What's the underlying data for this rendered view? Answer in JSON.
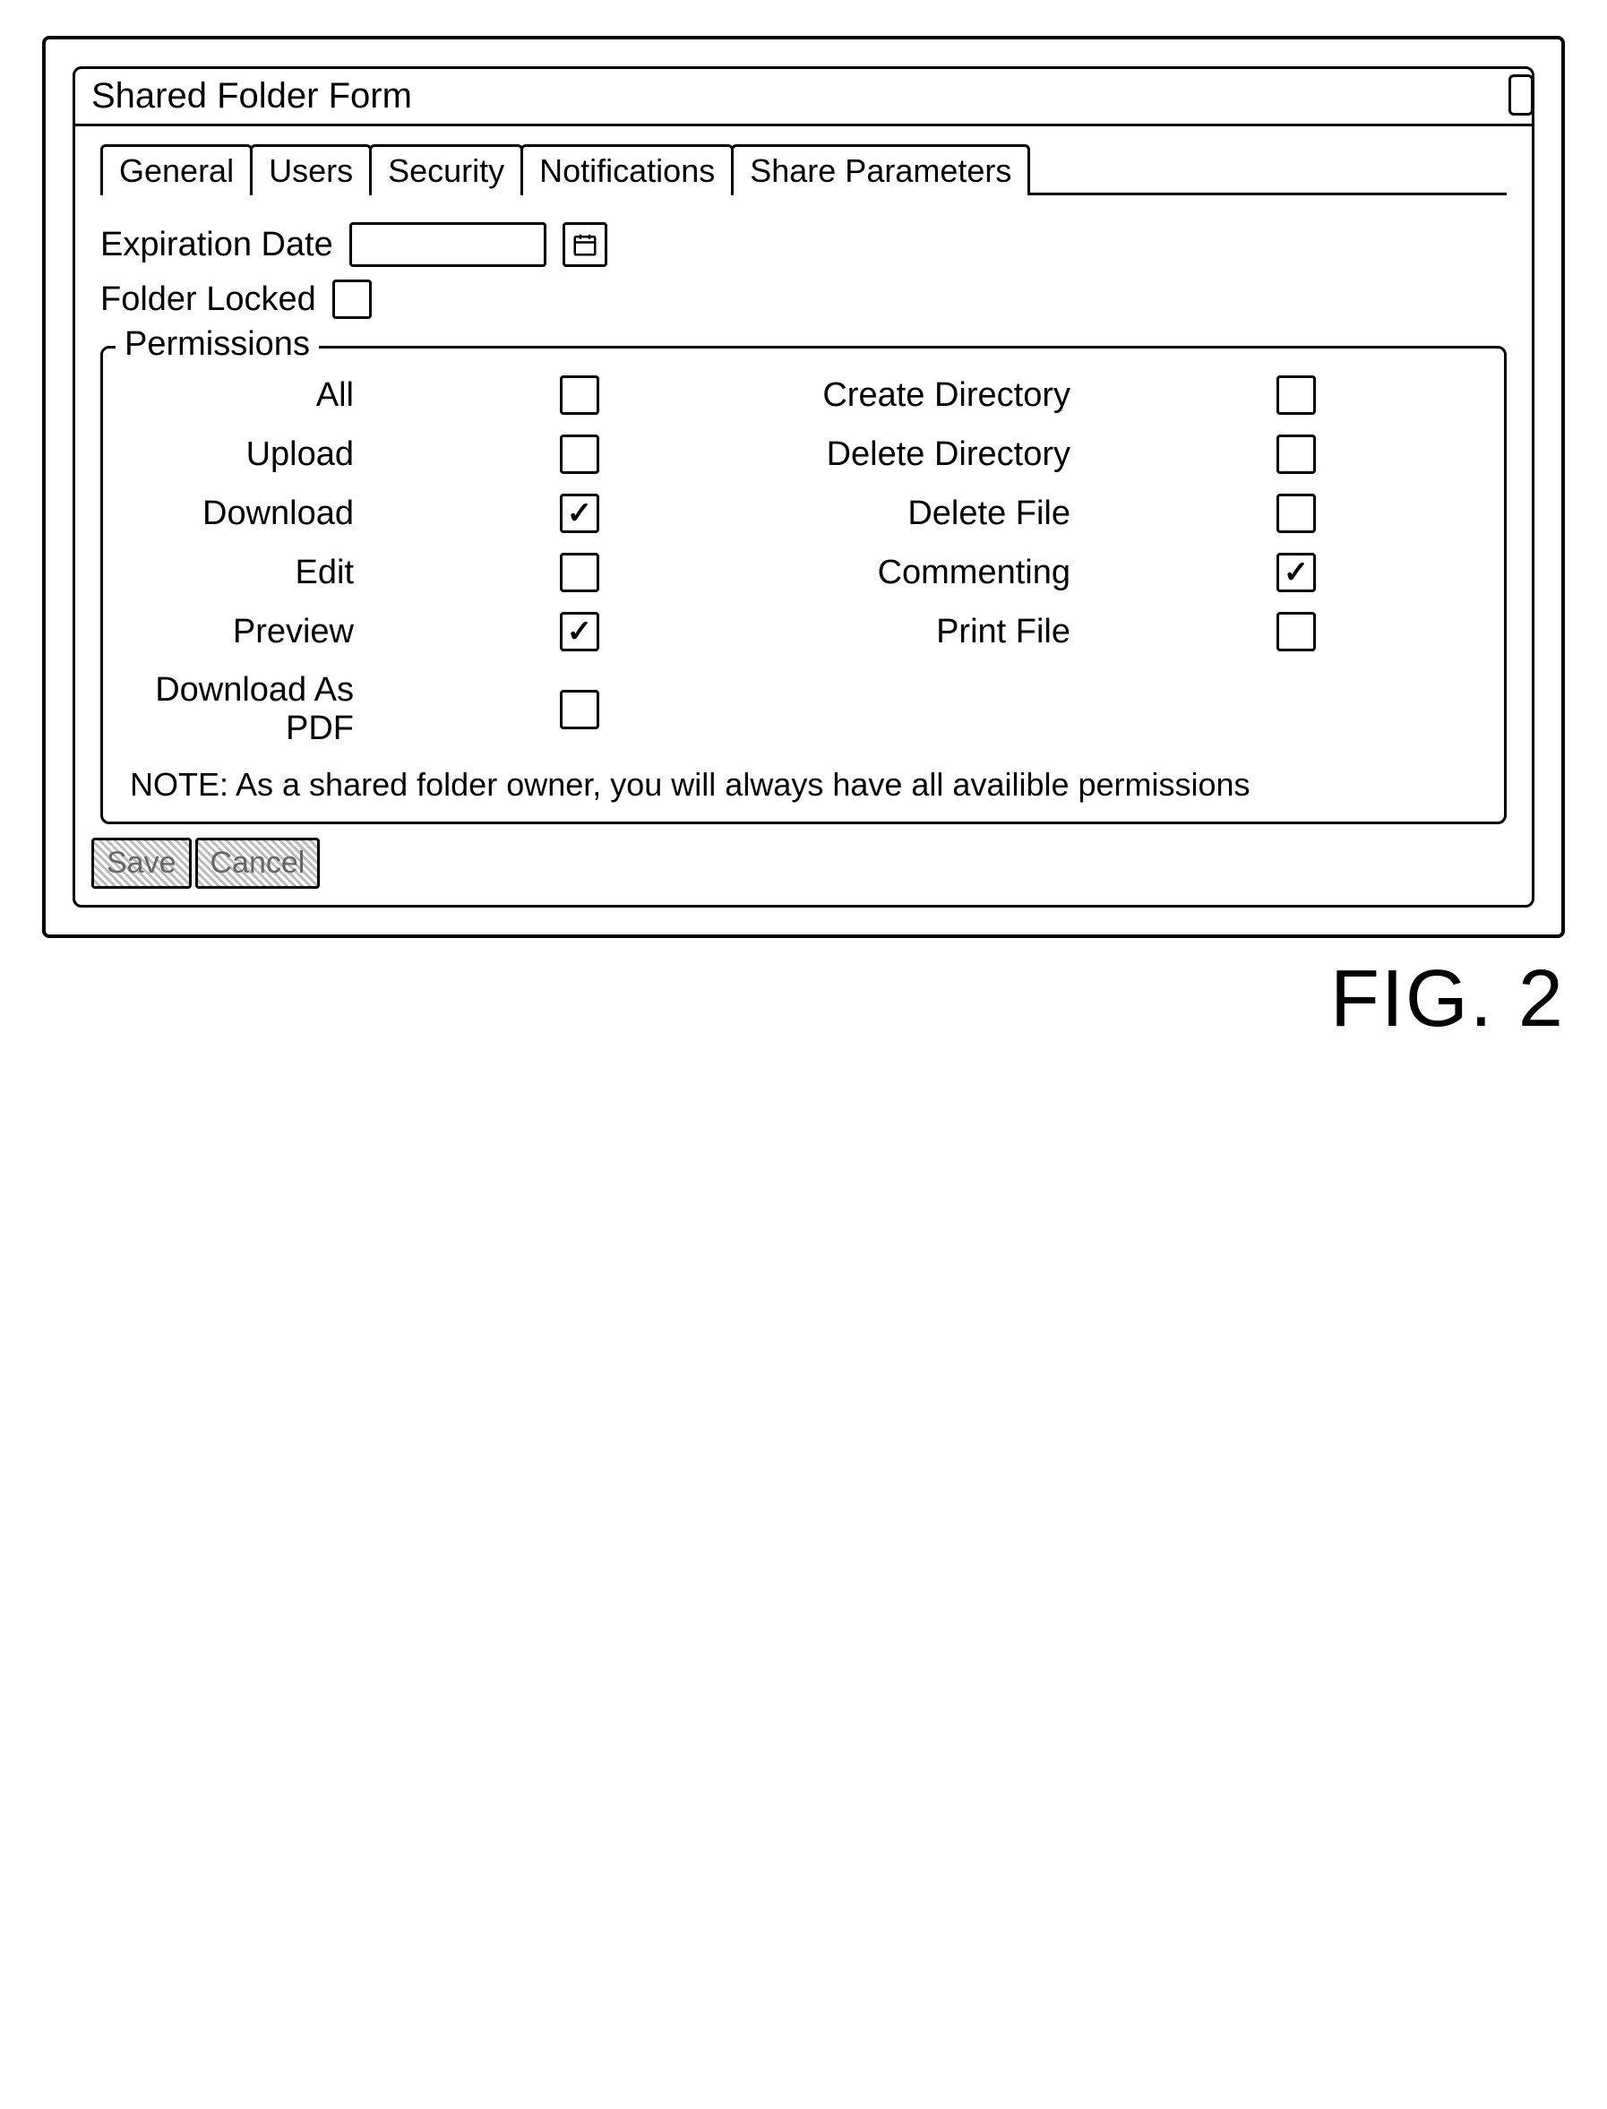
{
  "figure_label": "FIG. 2",
  "window": {
    "title": "Shared Folder Form",
    "tabs": [
      "General",
      "Users",
      "Security",
      "Notifications",
      "Share Parameters"
    ],
    "active_tab_index": 2
  },
  "form": {
    "expiration_date": {
      "label": "Expiration Date",
      "value": "",
      "icon": "calendar-icon"
    },
    "folder_locked": {
      "label": "Folder Locked",
      "checked": false
    }
  },
  "permissions": {
    "legend": "Permissions",
    "rows": [
      {
        "left_label": "All",
        "left_checked": false,
        "right_label": "Create Directory",
        "right_checked": false
      },
      {
        "left_label": "Upload",
        "left_checked": false,
        "right_label": "Delete Directory",
        "right_checked": false
      },
      {
        "left_label": "Download",
        "left_checked": true,
        "right_label": "Delete File",
        "right_checked": false
      },
      {
        "left_label": "Edit",
        "left_checked": false,
        "right_label": "Commenting",
        "right_checked": true
      },
      {
        "left_label": "Preview",
        "left_checked": true,
        "right_label": "Print File",
        "right_checked": false
      },
      {
        "left_label": "Download As PDF",
        "left_checked": false,
        "right_label": "",
        "right_checked": null
      }
    ],
    "note": "NOTE: As a shared folder owner, you will always have all availible permissions"
  },
  "buttons": {
    "save": "Save",
    "cancel": "Cancel"
  },
  "style": {
    "border_color": "#000000",
    "background_color": "#ffffff",
    "font_family": "Arial",
    "title_fontsize": 40,
    "label_fontsize": 38,
    "button_fontsize": 34,
    "checkbox_size": 44,
    "hatch_colors": [
      "#ffffff",
      "#bbbbbb"
    ]
  }
}
